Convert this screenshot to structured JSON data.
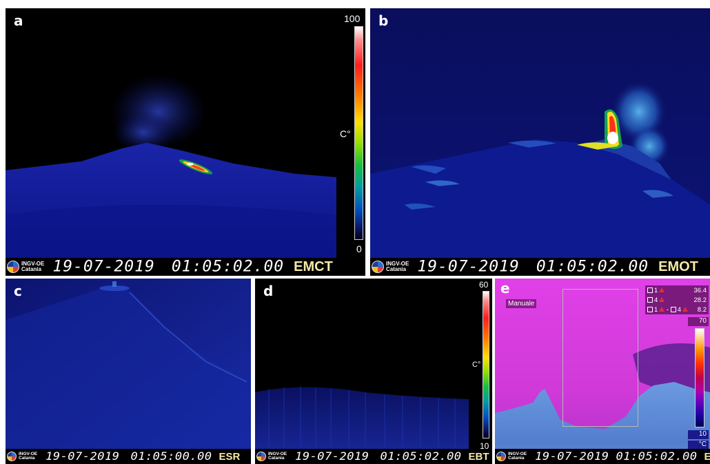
{
  "panels": {
    "a": {
      "letter": "a",
      "scale_max": "100",
      "scale_min": "0",
      "unit": "C°",
      "date": "19-07-2019",
      "time": "01:05:02.00",
      "camera": "EMCT",
      "logo": {
        "line1": "INGV-OE",
        "line2": "Catania"
      }
    },
    "b": {
      "letter": "b",
      "date": "19-07-2019",
      "time": "01:05:02.00",
      "camera": "EMOT",
      "logo": {
        "line1": "INGV-OE",
        "line2": "Catania"
      }
    },
    "c": {
      "letter": "c",
      "date": "19-07-2019",
      "time": "01:05:00.00",
      "camera": "ESR",
      "logo": {
        "line1": "INGV-OE",
        "line2": "Catania"
      }
    },
    "d": {
      "letter": "d",
      "scale_max": "60",
      "scale_min": "10",
      "unit": "C°",
      "date": "19-07-2019",
      "time": "01:05:02.00",
      "camera": "EBT",
      "logo": {
        "line1": "INGV-OE",
        "line2": "Catania"
      }
    },
    "e": {
      "letter": "e",
      "mode_label": "Manuale",
      "measurements": [
        {
          "label_a": "1",
          "label_b": "",
          "value": "36.4"
        },
        {
          "label_a": "4",
          "label_b": "",
          "value": "28.2"
        },
        {
          "label_a": "1",
          "label_b": "4",
          "value": "8.2"
        }
      ],
      "scale_max": "70",
      "scale_min": "10",
      "unit": "°C",
      "date": "19-07-2019",
      "time": "01:05:02.00",
      "camera": "ENT",
      "logo": {
        "line1": "INGV-OE",
        "line2": "Catania"
      }
    }
  },
  "colors": {
    "night_blue": "#0a0f6e",
    "sky_black": "#000000",
    "hot_white": "#ffffff",
    "hot_red": "#ff2020",
    "footer_camera": "#f4e8a6",
    "sky_magenta": "#d838e0",
    "ground_blue": "#5c8ad8"
  }
}
